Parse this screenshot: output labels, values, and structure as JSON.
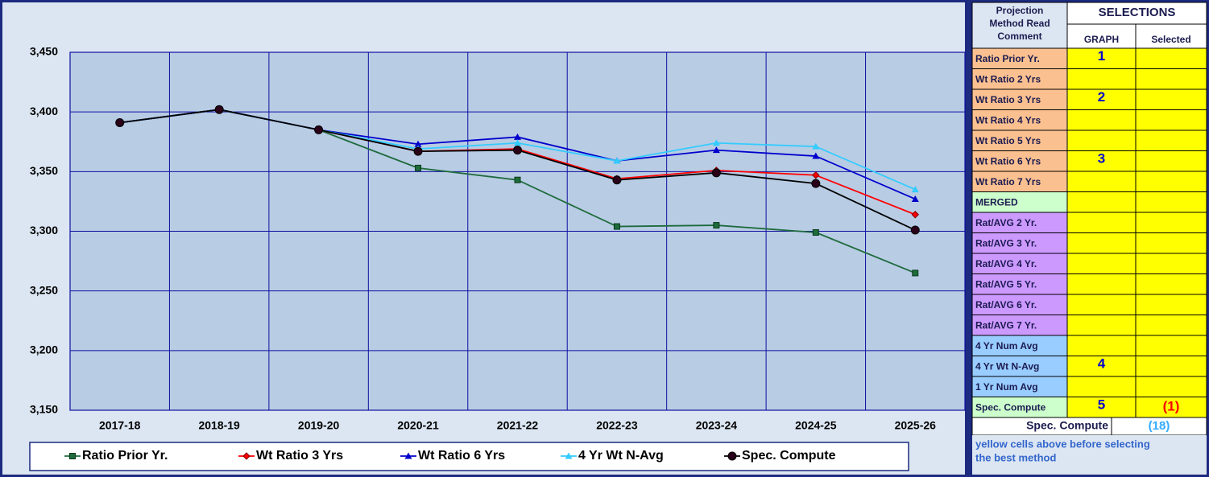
{
  "chart_data": {
    "type": "line",
    "categories": [
      "2017-18",
      "2018-19",
      "2019-20",
      "2020-21",
      "2021-22",
      "2022-23",
      "2023-24",
      "2024-25",
      "2025-26"
    ],
    "series": [
      {
        "name": "Ratio Prior Yr.",
        "color": "#1e6b3c",
        "marker": "square",
        "values": [
          3391,
          3402,
          3385,
          3353,
          3343,
          3304,
          3305,
          3299,
          3265
        ]
      },
      {
        "name": "Wt Ratio 3 Yrs",
        "color": "#ff0000",
        "marker": "diamond",
        "values": [
          3391,
          3402,
          3385,
          3367,
          3369,
          3344,
          3351,
          3347,
          3314
        ]
      },
      {
        "name": "Wt Ratio 6 Yrs",
        "color": "#0000cc",
        "marker": "triangle",
        "values": [
          3391,
          3402,
          3385,
          3373,
          3379,
          3359,
          3368,
          3363,
          3327
        ]
      },
      {
        "name": "4 Yr Wt N-Avg",
        "color": "#33ccff",
        "marker": "triangle",
        "values": [
          3391,
          3402,
          3385,
          3369,
          3374,
          3359,
          3374,
          3371,
          3335
        ]
      },
      {
        "name": "Spec. Compute",
        "color": "#000000",
        "marker": "circle",
        "values": [
          3391,
          3402,
          3385,
          3367,
          3368,
          3343,
          3349,
          3340,
          3301
        ]
      }
    ],
    "ylim": [
      3150,
      3450
    ],
    "yticks": [
      {
        "value": 3150,
        "label": "3,150"
      },
      {
        "value": 3200,
        "label": "3,200"
      },
      {
        "value": 3250,
        "label": "3,250"
      },
      {
        "value": 3300,
        "label": "3,300"
      },
      {
        "value": 3350,
        "label": "3,350"
      },
      {
        "value": 3400,
        "label": "3,400"
      },
      {
        "value": 3450,
        "label": "3,450"
      }
    ],
    "grid": true,
    "legend": "bottom"
  },
  "table": {
    "header": [
      "Projection",
      "Method Read",
      "Comment"
    ],
    "selections": "SELECTIONS",
    "columns": [
      "GRAPH",
      "Selected"
    ],
    "rows": [
      {
        "method": "Ratio Prior Yr.",
        "color": "#fac090",
        "graph": "1"
      },
      {
        "method": "Wt Ratio 2 Yrs",
        "color": "#fac090"
      },
      {
        "method": "Wt Ratio 3 Yrs",
        "color": "#fac090",
        "graph": "2"
      },
      {
        "method": "Wt Ratio 4 Yrs",
        "color": "#fac090"
      },
      {
        "method": "Wt Ratio 5 Yrs",
        "color": "#fac090"
      },
      {
        "method": "Wt Ratio 6 Yrs",
        "color": "#fac090",
        "graph": "3"
      },
      {
        "method": "Wt Ratio 7 Yrs",
        "color": "#fac090"
      },
      {
        "method": "MERGED",
        "color": "#ccffcc"
      },
      {
        "method": "Rat/AVG 2 Yr.",
        "color": "#cc99ff"
      },
      {
        "method": "Rat/AVG 3 Yr.",
        "color": "#cc99ff"
      },
      {
        "method": "Rat/AVG 4 Yr.",
        "color": "#cc99ff"
      },
      {
        "method": "Rat/AVG 5 Yr.",
        "color": "#cc99ff"
      },
      {
        "method": "Rat/AVG 6 Yr.",
        "color": "#cc99ff"
      },
      {
        "method": "Rat/AVG 7 Yr.",
        "color": "#cc99ff"
      },
      {
        "method": "4 Yr Num Avg",
        "color": "#99ccff"
      },
      {
        "method": "4 Yr Wt N-Avg",
        "color": "#99ccff",
        "graph": "4"
      },
      {
        "method": "1 Yr Num Avg",
        "color": "#99ccff"
      },
      {
        "method": "Spec. Compute",
        "color": "#ccffcc",
        "graph": "5",
        "selected": "(1)"
      }
    ],
    "footer": {
      "label": "Spec. Compute",
      "value": "(18)"
    },
    "note": [
      "yellow cells above before selecting",
      "the best method"
    ]
  }
}
